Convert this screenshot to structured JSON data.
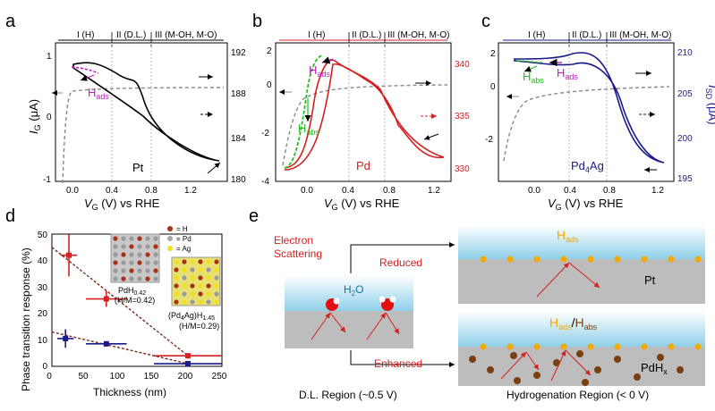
{
  "colors": {
    "black": "#000000",
    "red": "#d42020",
    "navy": "#1a1a8c",
    "gray": "#8c8c8c",
    "magenta": "#c020c0",
    "green": "#22c022",
    "orange": "#f2a900",
    "brown": "#7a3f10",
    "water": "#9fd6ea",
    "substrate": "#bdbdbd"
  },
  "panel_a": {
    "letter": "a",
    "ylabel_main": "I",
    "ylabel_sub": "G",
    "ylabel_unit": " (μA)",
    "xlabel_main": "V",
    "xlabel_sub": "G",
    "xlabel_unit": " (V) vs RHE",
    "regions": [
      "I (H)",
      "II (D.L.)",
      "III (M-OH, M-O)"
    ],
    "ann_H": "H",
    "ann_sub": "ads",
    "metal": "Pt",
    "xticks": [
      "0.0",
      "0.4",
      "0.8",
      "1.2"
    ],
    "yticks_left": [
      "1",
      "0",
      "-1"
    ],
    "yticks_right": [
      "192",
      "188",
      "184",
      "180"
    ]
  },
  "panel_b": {
    "letter": "b",
    "xlabel_main": "V",
    "xlabel_sub": "G",
    "xlabel_unit": " (V) vs RHE",
    "regions": [
      "I (H)",
      "II (D.L.)",
      "III (M-OH, M-O)"
    ],
    "ann_ads_H": "H",
    "ann_ads_sub": "ads",
    "ann_abs_H": "H",
    "ann_abs_sub": "abs",
    "metal": "Pd",
    "xticks": [
      "0.0",
      "0.4",
      "0.8",
      "1.2"
    ],
    "yticks_left": [
      "2",
      "0",
      "-2",
      "-4"
    ],
    "yticks_right": [
      "340",
      "335",
      "330"
    ]
  },
  "panel_c": {
    "letter": "c",
    "xlabel_main": "V",
    "xlabel_sub": "G",
    "xlabel_unit": " (V) vs RHE",
    "ylabel_right_main": "I",
    "ylabel_right_sub": "SD",
    "ylabel_right_unit": " (μA)",
    "regions": [
      "I (H)",
      "II (D.L.)",
      "III (M-OH, M-O)"
    ],
    "ann_abs_H": "H",
    "ann_abs_sub": "abs",
    "ann_ads_H": "H",
    "ann_ads_sub": "ads",
    "metal_main": "Pd",
    "metal_sub": "4",
    "metal_tail": "Ag",
    "xticks": [
      "0.0",
      "0.4",
      "0.8",
      "1.2"
    ],
    "yticks_left": [
      "2",
      "0",
      "-2"
    ],
    "yticks_right": [
      "210",
      "205",
      "200",
      "195"
    ]
  },
  "panel_d": {
    "letter": "d",
    "xlabel": "Thickness (nm)",
    "ylabel": "Phase transition response (%)",
    "xticks": [
      "0",
      "50",
      "100",
      "150",
      "200",
      "250"
    ],
    "yticks": [
      "0",
      "10",
      "20",
      "30",
      "40",
      "50"
    ],
    "legend": [
      "= H",
      "= Pd",
      "= Ag"
    ],
    "crystal1_main": "PdH",
    "crystal1_sub": "0.42",
    "crystal1_ratio": "(H/M=0.42)",
    "crystal2_main": "(Pd",
    "crystal2_sub1": "4",
    "crystal2_mid": "Ag)H",
    "crystal2_sub2": "1.45",
    "crystal2_ratio": "(H/M=0.29)"
  },
  "chart_data": [
    {
      "type": "scatter",
      "xlabel": "Thickness (nm)",
      "ylabel": "Phase transition response (%)",
      "xlim": [
        0,
        250
      ],
      "ylim": [
        0,
        50
      ],
      "series": [
        {
          "color": "#d42020",
          "points": [
            {
              "x": 25,
              "y": 42,
              "xerr": 12,
              "yerr": 8
            },
            {
              "x": 80,
              "y": 25.5,
              "xerr": 30,
              "yerr": 3
            },
            {
              "x": 200,
              "y": 4,
              "xerr": 50,
              "yerr": 1
            }
          ],
          "trend": [
            [
              0,
              45
            ],
            [
              200,
              4
            ]
          ]
        },
        {
          "color": "#1a1a8c",
          "points": [
            {
              "x": 20,
              "y": 10.5,
              "xerr": 12,
              "yerr": 3.5
            },
            {
              "x": 80,
              "y": 8.5,
              "xerr": 30,
              "yerr": 1
            },
            {
              "x": 200,
              "y": 1,
              "xerr": 50,
              "yerr": 1
            }
          ],
          "trend": [
            [
              0,
              13
            ],
            [
              200,
              1
            ]
          ]
        }
      ]
    }
  ],
  "panel_e": {
    "letter": "e",
    "electron": "Electron",
    "scattering": "Scattering",
    "reduced": "Reduced",
    "enhanced": "Enhanced",
    "water": "H",
    "water_sub": "2",
    "water_tail": "O",
    "top_ads_H": "H",
    "top_ads_sub": "ads",
    "top_metal": "Pt",
    "bot_ads_H": "H",
    "bot_ads_sub": "ads",
    "slash": "/",
    "bot_abs_H": "H",
    "bot_abs_sub": "abs",
    "bot_metal": "PdH",
    "bot_metal_sub": "x",
    "dl_region": "D.L. Region (~0.5 V)",
    "hyd_region": "Hydrogenation Region (< 0 V)"
  }
}
